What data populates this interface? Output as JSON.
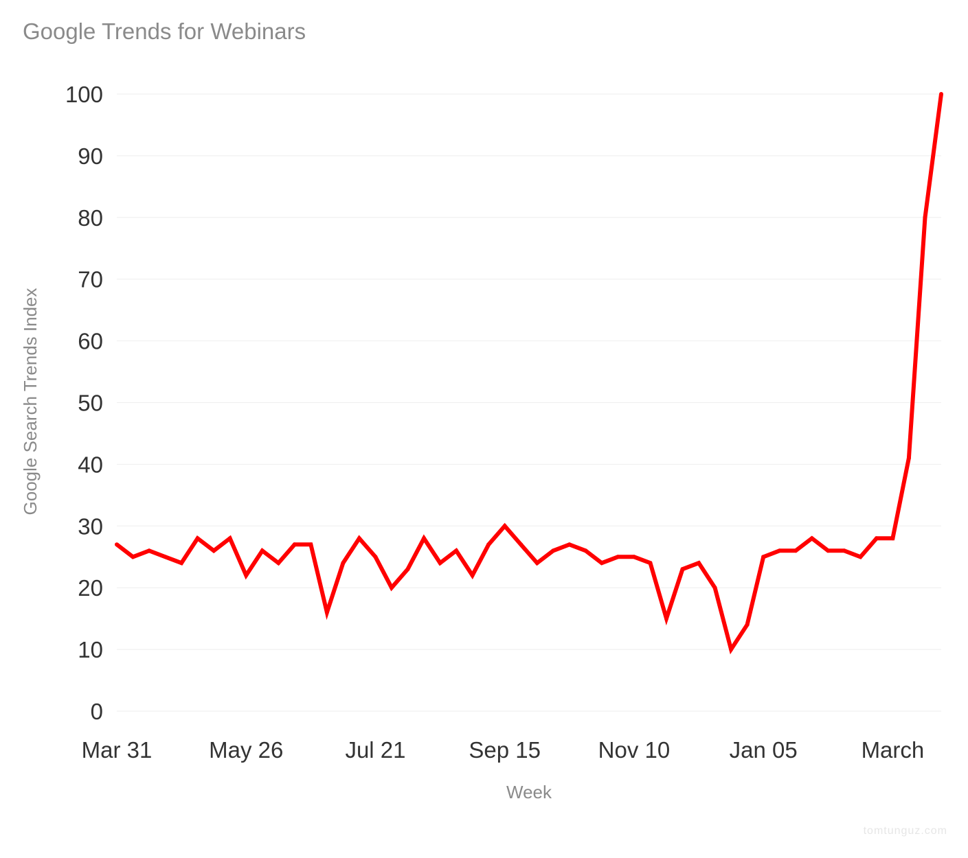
{
  "chart_data": {
    "type": "line",
    "title": "Google Trends for Webinars",
    "xlabel": "Week",
    "ylabel": "Google Search Trends Index",
    "ylim": [
      0,
      100
    ],
    "yticks": [
      0,
      10,
      20,
      30,
      40,
      50,
      60,
      70,
      80,
      90,
      100
    ],
    "xtick_labels": [
      {
        "label": "Mar 31",
        "index": 0
      },
      {
        "label": "May 26",
        "index": 8
      },
      {
        "label": "Jul 21",
        "index": 16
      },
      {
        "label": "Sep 15",
        "index": 24
      },
      {
        "label": "Nov 10",
        "index": 32
      },
      {
        "label": "Jan 05",
        "index": 40
      },
      {
        "label": "March",
        "index": 48
      }
    ],
    "grid": "horizontal",
    "line_color": "#ff0000",
    "series": [
      {
        "values": [
          27,
          25,
          26,
          25,
          24,
          28,
          26,
          28,
          22,
          26,
          24,
          27,
          27,
          16,
          24,
          28,
          25,
          20,
          23,
          28,
          24,
          26,
          22,
          27,
          30,
          27,
          24,
          26,
          27,
          26,
          24,
          25,
          25,
          24,
          15,
          23,
          24,
          20,
          10,
          14,
          25,
          26,
          26,
          28,
          26,
          26,
          25,
          28,
          28,
          41,
          80,
          100
        ]
      }
    ]
  },
  "watermark": "tomtunguz.com"
}
